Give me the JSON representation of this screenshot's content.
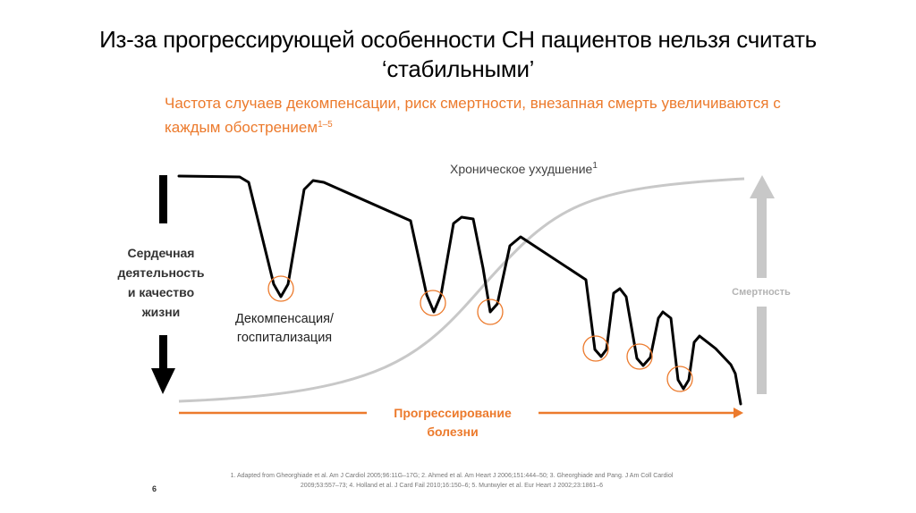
{
  "title": "Из-за прогрессирующей особенности СН пациентов нельзя считать ‘стабильными’",
  "subtitle": {
    "text": "Частота случаев декомпенсации, риск смертности, внезапная смерть увеличиваются с каждым обострением",
    "sup": "1–5"
  },
  "labels": {
    "chronic": "Хроническое ухудшение",
    "chronic_sup": "1",
    "heart_function": "Сердечная деятельность и качество жизни",
    "decompensation": "Декомпенсация/ госпитализация",
    "mortality": "Смертность",
    "progression": "Прогрессирование болезни"
  },
  "footer": {
    "page_number": "6",
    "references": "1. Adapted from Gheorghiade et al. Am J Cardiol 2005;96:11G–17G; 2. Ahmed et al. Am Heart J 2006;151:444–50; 3. Gheorghiade and Pang. J Am Coll Cardiol 2009;53:557–73; 4. Holland et al. J Card Fail 2010;16:150–6; 5. Muntwyler et al. Eur Heart J 2002;23:1861–6"
  },
  "colors": {
    "accent": "#ec7a2c",
    "curve": "#000000",
    "chronic_curve": "#c8c8c8",
    "mortality_arrow": "#c8c8c8"
  }
}
